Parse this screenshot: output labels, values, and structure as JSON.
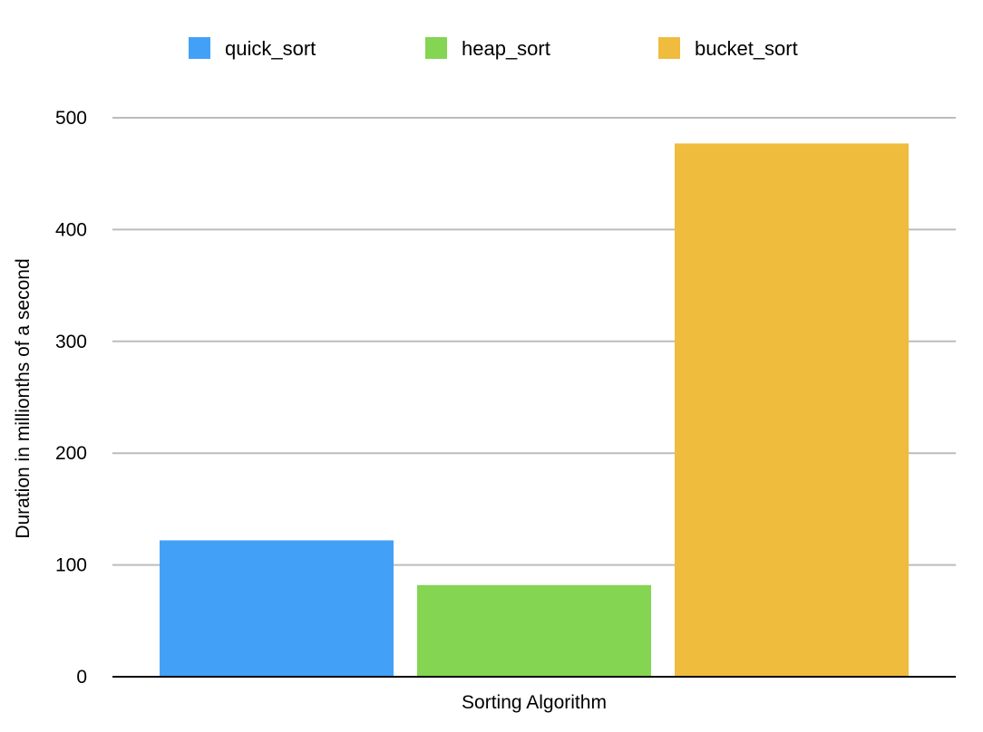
{
  "chart_data": {
    "type": "bar",
    "title": "",
    "xlabel": "Sorting Algorithm",
    "ylabel": "Duration in millionths of a second",
    "categories": [
      ""
    ],
    "series": [
      {
        "name": "quick_sort",
        "values": [
          122
        ],
        "color": "#42a1f7"
      },
      {
        "name": "heap_sort",
        "values": [
          82
        ],
        "color": "#83d552"
      },
      {
        "name": "bucket_sort",
        "values": [
          477
        ],
        "color": "#efbc3e"
      }
    ],
    "ylim": [
      0,
      500
    ],
    "yticks": [
      0,
      100,
      200,
      300,
      400,
      500
    ],
    "grid": true,
    "legend_position": "top"
  },
  "colors": {
    "grid": "#bcbcbc",
    "axis": "#000000"
  }
}
